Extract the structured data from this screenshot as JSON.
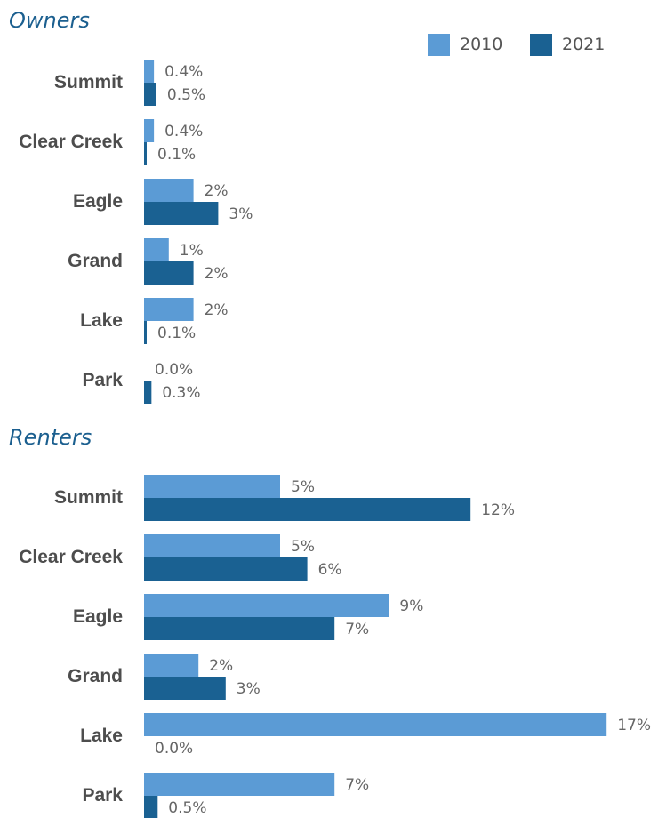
{
  "colors": {
    "series_2010": "#5b9bd5",
    "series_2021": "#1a6192",
    "panel_title": "#1b5f8f"
  },
  "legend": {
    "placement": "top-right",
    "items": [
      "2010",
      "2021"
    ]
  },
  "chart_data": [
    {
      "type": "bar",
      "orientation": "horizontal",
      "title": "Owners",
      "categories": [
        "Summit",
        "Clear Creek",
        "Eagle",
        "Grand",
        "Lake",
        "Park"
      ],
      "series": [
        {
          "name": "2010",
          "values": [
            0.4,
            0.4,
            2,
            1,
            2,
            0.0
          ],
          "labels": [
            "0.4%",
            "0.4%",
            "2%",
            "1%",
            "2%",
            "0.0%"
          ]
        },
        {
          "name": "2021",
          "values": [
            0.5,
            0.1,
            3,
            2,
            0.1,
            0.3
          ],
          "labels": [
            "0.5%",
            "0.1%",
            "3%",
            "2%",
            "0.1%",
            "0.3%"
          ]
        }
      ],
      "grid": false
    },
    {
      "type": "bar",
      "orientation": "horizontal",
      "title": "Renters",
      "categories": [
        "Summit",
        "Clear Creek",
        "Eagle",
        "Grand",
        "Lake",
        "Park"
      ],
      "series": [
        {
          "name": "2010",
          "values": [
            5,
            5,
            9,
            2,
            17,
            7
          ],
          "labels": [
            "5%",
            "5%",
            "9%",
            "2%",
            "17%",
            "7%"
          ]
        },
        {
          "name": "2021",
          "values": [
            12,
            6,
            7,
            3,
            0.0,
            0.5
          ],
          "labels": [
            "12%",
            "6%",
            "7%",
            "3%",
            "0.0%",
            "0.5%"
          ]
        }
      ],
      "grid": false
    }
  ]
}
